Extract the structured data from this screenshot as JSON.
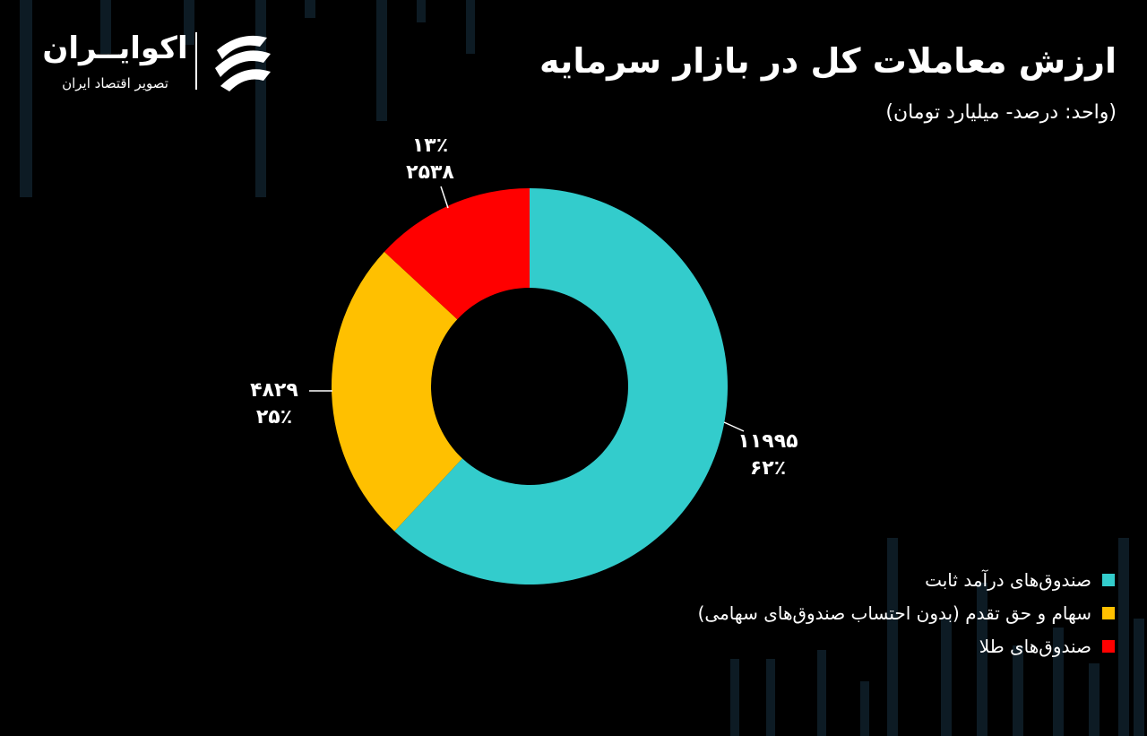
{
  "brand": {
    "name": "اکوایــران",
    "tagline": "تصویر اقتصاد ایران"
  },
  "header": {
    "title": "ارزش معاملات کل در بازار سرمایه",
    "subtitle": "(واحد: درصد- میلیارد تومان)"
  },
  "chart_data": {
    "type": "pie",
    "style": "donut",
    "legend_position": "bottom-right",
    "categories": [
      "صندوق‌های درآمد ثابت",
      "سهام و حق تقدم (بدون احتساب صندوق‌های سهامی)",
      "صندوق‌های طلا"
    ],
    "values": [
      11995,
      4829,
      2538
    ],
    "value_labels": [
      "۱۱۹۹۵",
      "۴۸۲۹",
      "۲۵۳۸"
    ],
    "percent_labels": [
      "۶۲٪",
      "۲۵٪",
      "۱۳٪"
    ],
    "colors": [
      "#33CCCC",
      "#FFC000",
      "#FF0000"
    ]
  },
  "colors": {
    "background": "#000000",
    "text": "#FFFFFF",
    "decor_bars": "#0D1B24"
  }
}
